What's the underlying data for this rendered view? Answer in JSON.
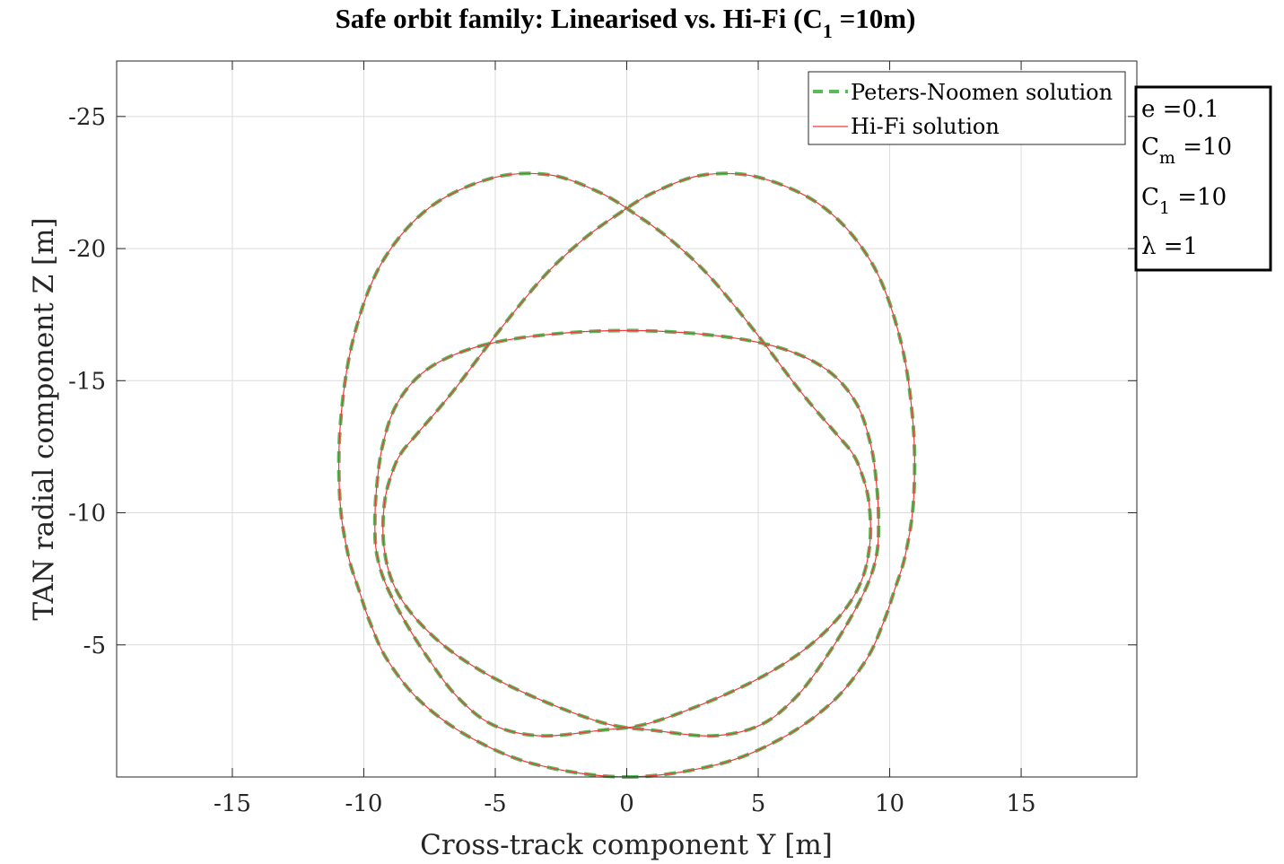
{
  "chart_data": {
    "type": "line",
    "title": {
      "prefix": "Safe orbit family: Linearised vs. Hi-Fi (C",
      "sub": "1",
      "suffix": " =10m)"
    },
    "xlabel": "Cross-track component Y [m]",
    "ylabel": "TAN radial component Z [m]",
    "xlim": [
      -19.4,
      19.4
    ],
    "ylim": [
      0,
      -27.1
    ],
    "y_direction": "reversed",
    "xticks": [
      -15,
      -10,
      -5,
      0,
      5,
      10,
      15
    ],
    "xtick_labels": [
      "-15",
      "-10",
      "-5",
      "0",
      "5",
      "10",
      "15"
    ],
    "yticks": [
      -5,
      -10,
      -15,
      -20,
      -25
    ],
    "ytick_labels": [
      "-5",
      "-10",
      "-15",
      "-20",
      "-25"
    ],
    "grid": true,
    "legend_position": "top-right",
    "series": [
      {
        "name": "Peters-Noomen solution",
        "style": "dashed",
        "color": "#5cb85c",
        "x": [
          0.0,
          3.37,
          5.81,
          7.78,
          9.08,
          9.76,
          10.17,
          10.6,
          10.91,
          10.89,
          10.41,
          9.34,
          7.53,
          5.12,
          2.95,
          1.04,
          -0.41,
          -1.7,
          -3.15,
          -4.87,
          -6.62,
          -7.96,
          -8.55,
          -8.88,
          -9.2,
          -9.25,
          -8.9,
          -8.0,
          -6.43,
          -4.13,
          -1.01,
          1.06,
          3.31,
          5.11,
          6.48,
          7.62,
          8.57,
          9.21,
          9.51,
          9.58,
          9.52,
          9.29,
          8.72,
          7.6,
          5.8,
          3.27,
          0.0,
          -3.27,
          -5.8,
          -7.6,
          -8.72,
          -9.29,
          -9.52,
          -9.58,
          -9.51,
          -9.21,
          -8.57,
          -7.62,
          -6.48,
          -5.11,
          -3.31,
          -1.06,
          1.01,
          4.13,
          6.43,
          8.0,
          8.9,
          9.25,
          9.2,
          8.88,
          8.55,
          7.96,
          6.62,
          4.87,
          3.15,
          1.7,
          0.41,
          -1.04,
          -2.95,
          -5.12,
          -7.53,
          -9.34,
          -10.41,
          -10.89,
          -10.91,
          -10.6,
          -10.17,
          -9.76,
          -9.08,
          -7.78,
          -5.81,
          -3.37,
          0.0
        ],
        "y": [
          0.0,
          -0.45,
          -1.42,
          -2.8,
          -4.39,
          -5.84,
          -7.03,
          -8.42,
          -10.51,
          -13.37,
          -16.54,
          -19.42,
          -21.53,
          -22.67,
          -22.79,
          -22.13,
          -21.25,
          -20.31,
          -18.95,
          -16.87,
          -14.58,
          -13.0,
          -12.3,
          -11.64,
          -10.47,
          -8.88,
          -7.36,
          -5.97,
          -4.58,
          -3.29,
          -2.08,
          -1.76,
          -1.56,
          -1.98,
          -3.07,
          -4.59,
          -6.12,
          -7.41,
          -8.46,
          -9.51,
          -10.86,
          -12.53,
          -14.16,
          -15.42,
          -16.25,
          -16.72,
          -16.9,
          -16.72,
          -16.25,
          -15.42,
          -14.16,
          -12.53,
          -10.86,
          -9.51,
          -8.46,
          -7.41,
          -6.12,
          -4.59,
          -3.07,
          -1.98,
          -1.56,
          -1.76,
          -2.08,
          -3.29,
          -4.58,
          -5.97,
          -7.36,
          -8.88,
          -10.47,
          -11.64,
          -12.3,
          -13.0,
          -14.58,
          -16.87,
          -18.95,
          -20.31,
          -21.25,
          -22.13,
          -22.79,
          -22.67,
          -21.53,
          -19.42,
          -16.54,
          -13.37,
          -10.51,
          -8.42,
          -7.03,
          -5.84,
          -4.39,
          -2.8,
          -1.42,
          -0.45,
          0.0
        ]
      },
      {
        "name": "Hi-Fi solution",
        "style": "solid",
        "color": "#ec3b3b",
        "x": [
          0.0,
          3.37,
          5.81,
          7.78,
          9.08,
          9.76,
          10.17,
          10.6,
          10.91,
          10.89,
          10.41,
          9.34,
          7.53,
          5.12,
          2.95,
          1.04,
          -0.41,
          -1.7,
          -3.15,
          -4.87,
          -6.62,
          -7.96,
          -8.55,
          -8.88,
          -9.2,
          -9.25,
          -8.9,
          -8.0,
          -6.43,
          -4.13,
          -1.01,
          1.06,
          3.31,
          5.11,
          6.48,
          7.62,
          8.57,
          9.21,
          9.51,
          9.58,
          9.52,
          9.29,
          8.72,
          7.6,
          5.8,
          3.27,
          0.0,
          -3.27,
          -5.8,
          -7.6,
          -8.72,
          -9.29,
          -9.52,
          -9.58,
          -9.51,
          -9.21,
          -8.57,
          -7.62,
          -6.48,
          -5.11,
          -3.31,
          -1.06,
          1.01,
          4.13,
          6.43,
          8.0,
          8.9,
          9.25,
          9.2,
          8.88,
          8.55,
          7.96,
          6.62,
          4.87,
          3.15,
          1.7,
          0.41,
          -1.04,
          -2.95,
          -5.12,
          -7.53,
          -9.34,
          -10.41,
          -10.89,
          -10.91,
          -10.6,
          -10.17,
          -9.76,
          -9.08,
          -7.78,
          -5.81,
          -3.37,
          0.0
        ],
        "y": [
          0.0,
          -0.45,
          -1.42,
          -2.8,
          -4.39,
          -5.84,
          -7.03,
          -8.42,
          -10.51,
          -13.37,
          -16.54,
          -19.42,
          -21.53,
          -22.67,
          -22.79,
          -22.13,
          -21.25,
          -20.31,
          -18.95,
          -16.87,
          -14.58,
          -13.0,
          -12.3,
          -11.64,
          -10.47,
          -8.88,
          -7.36,
          -5.97,
          -4.58,
          -3.29,
          -2.08,
          -1.76,
          -1.56,
          -1.98,
          -3.07,
          -4.59,
          -6.12,
          -7.41,
          -8.46,
          -9.51,
          -10.86,
          -12.53,
          -14.16,
          -15.42,
          -16.25,
          -16.72,
          -16.9,
          -16.72,
          -16.25,
          -15.42,
          -14.16,
          -12.53,
          -10.86,
          -9.51,
          -8.46,
          -7.41,
          -6.12,
          -4.59,
          -3.07,
          -1.98,
          -1.56,
          -1.76,
          -2.08,
          -3.29,
          -4.58,
          -5.97,
          -7.36,
          -8.88,
          -10.47,
          -11.64,
          -12.3,
          -13.0,
          -14.58,
          -16.87,
          -18.95,
          -20.31,
          -21.25,
          -22.13,
          -22.79,
          -22.67,
          -21.53,
          -19.42,
          -16.54,
          -13.37,
          -10.51,
          -8.42,
          -7.03,
          -5.84,
          -4.39,
          -2.8,
          -1.42,
          -0.45,
          0.0
        ]
      }
    ],
    "annotation": [
      {
        "main": "e =0.1",
        "sub": ""
      },
      {
        "main": "C",
        "sub": "m",
        "suffix": " =10"
      },
      {
        "main": "C",
        "sub": "1",
        "suffix": " =10"
      },
      {
        "main": "λ =1",
        "sub": ""
      }
    ]
  }
}
